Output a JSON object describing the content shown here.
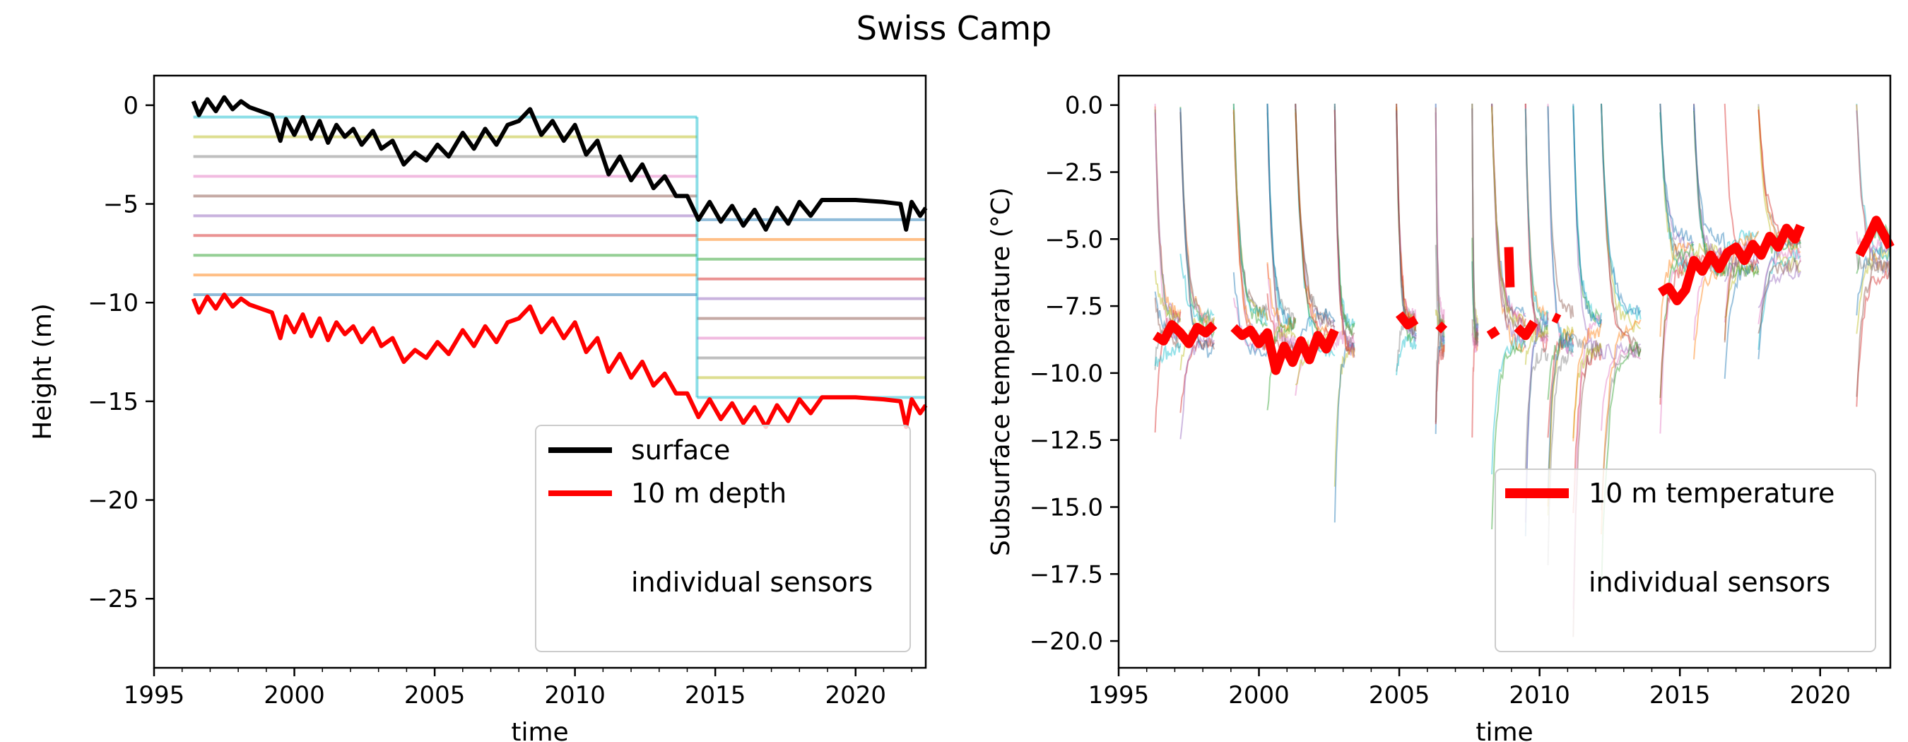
{
  "figure": {
    "suptitle": "Swiss Camp"
  },
  "chart_data": [
    {
      "type": "line",
      "title": "",
      "xlabel": "time",
      "ylabel": "Height (m)",
      "xlim": [
        1995,
        2022.5
      ],
      "ylim": [
        -28.5,
        1.5
      ],
      "xticks": [
        1995,
        2000,
        2005,
        2010,
        2015,
        2020
      ],
      "yticks": [
        0,
        -5,
        -10,
        -15,
        -20,
        -25
      ],
      "grid": false,
      "legend": {
        "position": "lower-right",
        "entries": [
          "surface",
          "10 m depth",
          "individual sensors"
        ]
      },
      "series": [
        {
          "name": "surface",
          "color": "#000000",
          "x": [
            1996.4,
            1996.6,
            1996.9,
            1997.2,
            1997.5,
            1997.8,
            1998.1,
            1998.4,
            1998.8,
            1999.2,
            1999.5,
            1999.7,
            2000.0,
            2000.3,
            2000.6,
            2000.9,
            2001.2,
            2001.5,
            2001.8,
            2002.1,
            2002.4,
            2002.8,
            2003.1,
            2003.5,
            2003.9,
            2004.3,
            2004.7,
            2005.1,
            2005.5,
            2006.0,
            2006.4,
            2006.8,
            2007.2,
            2007.6,
            2008.0,
            2008.4,
            2008.8,
            2009.2,
            2009.6,
            2010.0,
            2010.4,
            2010.8,
            2011.2,
            2011.6,
            2012.0,
            2012.4,
            2012.8,
            2013.2,
            2013.6,
            2014.0,
            2014.4,
            2014.8,
            2015.2,
            2015.6,
            2016.0,
            2016.4,
            2016.8,
            2017.2,
            2017.6,
            2018.0,
            2018.4,
            2018.8,
            2019.3,
            2020.0,
            2021.0,
            2021.6,
            2021.8,
            2022.0,
            2022.3,
            2022.5
          ],
          "y": [
            0.2,
            -0.5,
            0.3,
            -0.3,
            0.4,
            -0.2,
            0.2,
            -0.1,
            -0.3,
            -0.5,
            -1.8,
            -0.7,
            -1.5,
            -0.6,
            -1.7,
            -0.8,
            -1.9,
            -1.0,
            -1.6,
            -1.2,
            -2.0,
            -1.3,
            -2.2,
            -1.8,
            -3.0,
            -2.4,
            -2.8,
            -2.0,
            -2.6,
            -1.4,
            -2.2,
            -1.2,
            -2.0,
            -1.0,
            -0.8,
            -0.2,
            -1.5,
            -0.8,
            -1.8,
            -1.0,
            -2.5,
            -1.8,
            -3.5,
            -2.6,
            -3.8,
            -3.0,
            -4.2,
            -3.6,
            -4.6,
            -4.6,
            -5.8,
            -4.9,
            -5.9,
            -5.1,
            -6.1,
            -5.3,
            -6.3,
            -5.2,
            -6.0,
            -4.9,
            -5.6,
            -4.8,
            -4.8,
            -4.8,
            -4.9,
            -5.0,
            -6.3,
            -4.9,
            -5.6,
            -5.2
          ]
        },
        {
          "name": "10 m depth",
          "color": "#ff0000",
          "x": [
            1996.4,
            1996.6,
            1996.9,
            1997.2,
            1997.5,
            1997.8,
            1998.1,
            1998.4,
            1998.8,
            1999.2,
            1999.5,
            1999.7,
            2000.0,
            2000.3,
            2000.6,
            2000.9,
            2001.2,
            2001.5,
            2001.8,
            2002.1,
            2002.4,
            2002.8,
            2003.1,
            2003.5,
            2003.9,
            2004.3,
            2004.7,
            2005.1,
            2005.5,
            2006.0,
            2006.4,
            2006.8,
            2007.2,
            2007.6,
            2008.0,
            2008.4,
            2008.8,
            2009.2,
            2009.6,
            2010.0,
            2010.4,
            2010.8,
            2011.2,
            2011.6,
            2012.0,
            2012.4,
            2012.8,
            2013.2,
            2013.6,
            2014.0,
            2014.4,
            2014.8,
            2015.2,
            2015.6,
            2016.0,
            2016.4,
            2016.8,
            2017.2,
            2017.6,
            2018.0,
            2018.4,
            2018.8,
            2019.3,
            2020.0,
            2021.0,
            2021.6,
            2021.8,
            2022.0,
            2022.3,
            2022.5
          ],
          "y": [
            -9.8,
            -10.5,
            -9.7,
            -10.3,
            -9.6,
            -10.2,
            -9.8,
            -10.1,
            -10.3,
            -10.5,
            -11.8,
            -10.7,
            -11.5,
            -10.6,
            -11.7,
            -10.8,
            -11.9,
            -11.0,
            -11.6,
            -11.2,
            -12.0,
            -11.3,
            -12.2,
            -11.8,
            -13.0,
            -12.4,
            -12.8,
            -12.0,
            -12.6,
            -11.4,
            -12.2,
            -11.2,
            -12.0,
            -11.0,
            -10.8,
            -10.2,
            -11.5,
            -10.8,
            -11.8,
            -11.0,
            -12.5,
            -11.8,
            -13.5,
            -12.6,
            -13.8,
            -13.0,
            -14.2,
            -13.6,
            -14.6,
            -14.6,
            -15.8,
            -14.9,
            -15.9,
            -15.1,
            -16.1,
            -15.3,
            -16.3,
            -15.2,
            -16.0,
            -14.9,
            -15.6,
            -14.8,
            -14.8,
            -14.8,
            -14.9,
            -15.0,
            -16.3,
            -14.9,
            -15.6,
            -15.2
          ]
        }
      ],
      "sensor_levels_before_2014": [
        -0.6,
        -1.6,
        -2.6,
        -3.6,
        -4.6,
        -5.6,
        -6.6,
        -7.6,
        -8.6,
        -9.6
      ],
      "sensor_levels_after_2014": [
        -5.8,
        -6.8,
        -7.8,
        -8.8,
        -9.8,
        -10.8,
        -11.8,
        -12.8,
        -13.8,
        -14.8
      ]
    },
    {
      "type": "line",
      "title": "",
      "xlabel": "time",
      "ylabel": "Subsurface temperature (°C)",
      "xlim": [
        1995,
        2022.5
      ],
      "ylim": [
        -21,
        1.1
      ],
      "xticks": [
        1995,
        2000,
        2005,
        2010,
        2015,
        2020
      ],
      "yticks": [
        0.0,
        -2.5,
        -5.0,
        -7.5,
        -10.0,
        -12.5,
        -15.0,
        -17.5,
        -20.0
      ],
      "grid": false,
      "legend": {
        "position": "lower-right",
        "entries": [
          "10 m temperature",
          "individual sensors"
        ]
      },
      "series": [
        {
          "name": "10 m temperature",
          "color": "#ff0000",
          "segments": [
            {
              "x": [
                1996.3,
                1996.6,
                1996.9,
                1997.2,
                1997.5,
                1997.8,
                1998.1,
                1998.4
              ],
              "y": [
                -8.6,
                -8.8,
                -8.2,
                -8.5,
                -8.9,
                -8.3,
                -8.5,
                -8.2
              ]
            },
            {
              "x": [
                1999.1,
                1999.4,
                1999.7,
                2000.0,
                2000.3,
                2000.6,
                2000.9,
                2001.2,
                2001.5,
                2001.8,
                2002.1,
                2002.4,
                2002.7
              ],
              "y": [
                -8.3,
                -8.6,
                -8.4,
                -8.9,
                -8.5,
                -9.9,
                -9.0,
                -9.6,
                -8.8,
                -9.5,
                -8.6,
                -9.1,
                -8.4
              ]
            },
            {
              "x": [
                2005.0,
                2005.3,
                2005.6
              ],
              "y": [
                -7.8,
                -8.2,
                -8.0
              ]
            },
            {
              "x": [
                2006.4,
                2006.6
              ],
              "y": [
                -8.2,
                -8.4
              ]
            },
            {
              "x": [
                2008.2,
                2008.5
              ],
              "y": [
                -8.6,
                -8.4
              ]
            },
            {
              "x": [
                2008.9,
                2008.95
              ],
              "y": [
                -5.3,
                -6.8
              ]
            },
            {
              "x": [
                2009.2,
                2009.5,
                2009.8
              ],
              "y": [
                -8.3,
                -8.6,
                -8.1
              ]
            },
            {
              "x": [
                2010.5,
                2010.7
              ],
              "y": [
                -7.9,
                -8.0
              ]
            },
            {
              "x": [
                2014.3,
                2014.6,
                2014.9,
                2015.2,
                2015.5,
                2015.8,
                2016.1,
                2016.4,
                2016.7,
                2017.0,
                2017.3,
                2017.6,
                2017.9,
                2018.2,
                2018.5,
                2018.8,
                2019.1,
                2019.3
              ],
              "y": [
                -7.0,
                -6.8,
                -7.3,
                -6.9,
                -5.8,
                -6.2,
                -5.6,
                -6.1,
                -5.5,
                -5.3,
                -5.8,
                -5.2,
                -5.6,
                -4.9,
                -5.3,
                -4.6,
                -5.0,
                -4.5
              ]
            },
            {
              "x": [
                2021.4,
                2021.7,
                2022.0,
                2022.3,
                2022.5
              ],
              "y": [
                -5.6,
                -5.0,
                -4.3,
                -4.9,
                -5.3
              ]
            }
          ]
        }
      ]
    }
  ]
}
